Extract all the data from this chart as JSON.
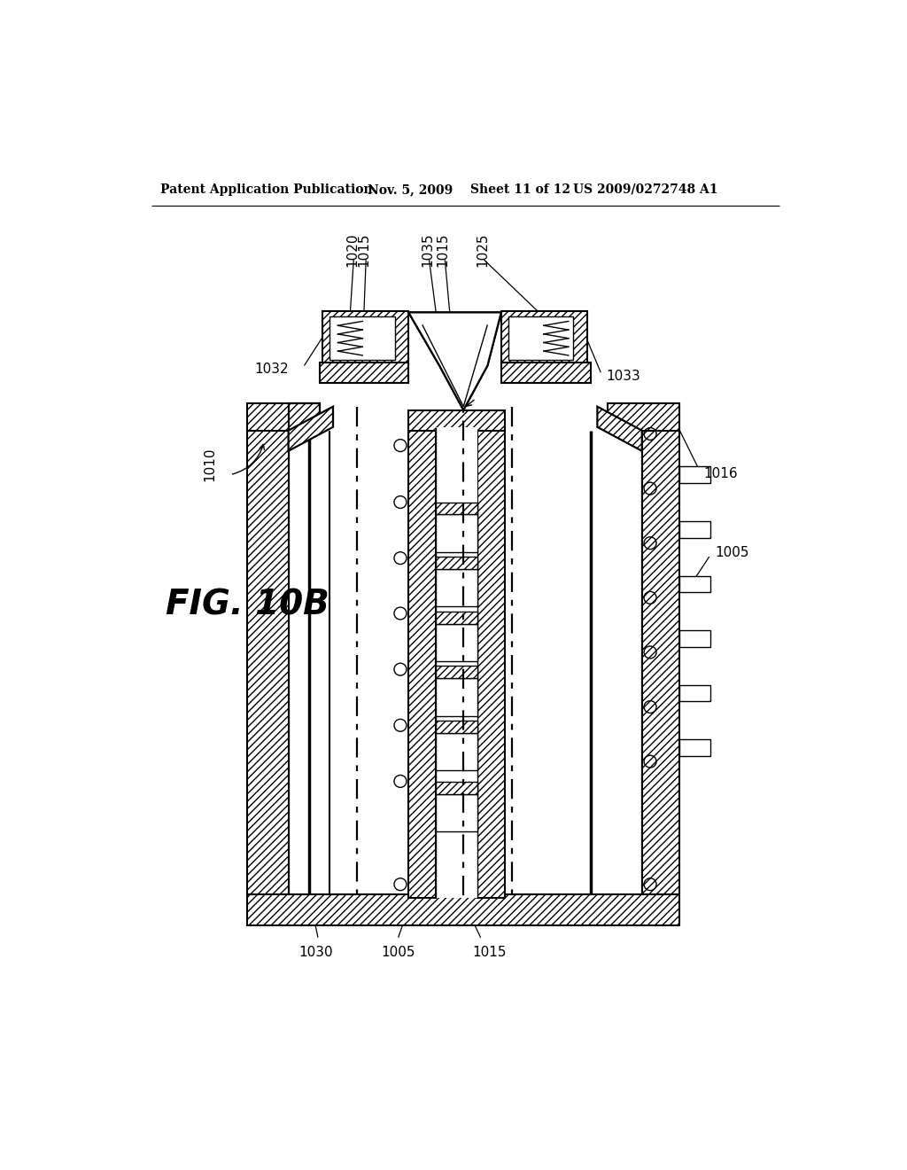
{
  "bg": "#ffffff",
  "header_left": "Patent Application Publication",
  "header_mid1": "Nov. 5, 2009",
  "header_mid2": "Sheet 11 of 12",
  "header_right": "US 2009/0272748 A1",
  "fig_label": "FIG. 10B",
  "lw_main": 1.6,
  "lw_thin": 1.0,
  "lw_thick": 2.5,
  "hatch": "////"
}
